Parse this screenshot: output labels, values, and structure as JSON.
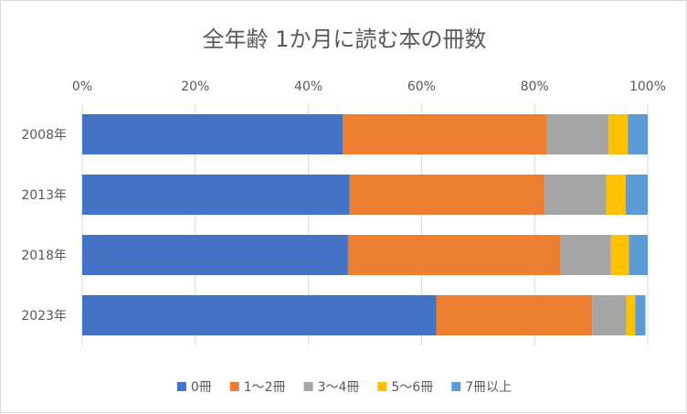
{
  "chart_data": {
    "type": "bar",
    "orientation": "horizontal",
    "stacked": "percent",
    "title": "全年齢 1か月に読む本の冊数",
    "categories": [
      "2008年",
      "2013年",
      "2018年",
      "2023年"
    ],
    "series": [
      {
        "name": "0冊",
        "color": "#4472C4",
        "values": [
          46.1,
          47.3,
          47.0,
          62.6
        ]
      },
      {
        "name": "1～2冊",
        "color": "#ED7D31",
        "values": [
          36.1,
          34.5,
          37.6,
          27.6
        ]
      },
      {
        "name": "3～4冊",
        "color": "#A5A5A5",
        "values": [
          10.9,
          10.9,
          8.9,
          6.0
        ]
      },
      {
        "name": "5～6冊",
        "color": "#FFC000",
        "values": [
          3.4,
          3.4,
          3.2,
          1.6
        ]
      },
      {
        "name": "7冊以上",
        "color": "#5B9BD5",
        "values": [
          3.5,
          3.9,
          3.3,
          1.8
        ]
      }
    ],
    "x_ticks": [
      "0%",
      "20%",
      "40%",
      "60%",
      "80%",
      "100%"
    ],
    "xlim": [
      0,
      100
    ],
    "x_axis_position": "top",
    "grid": true,
    "legend_position": "bottom"
  }
}
